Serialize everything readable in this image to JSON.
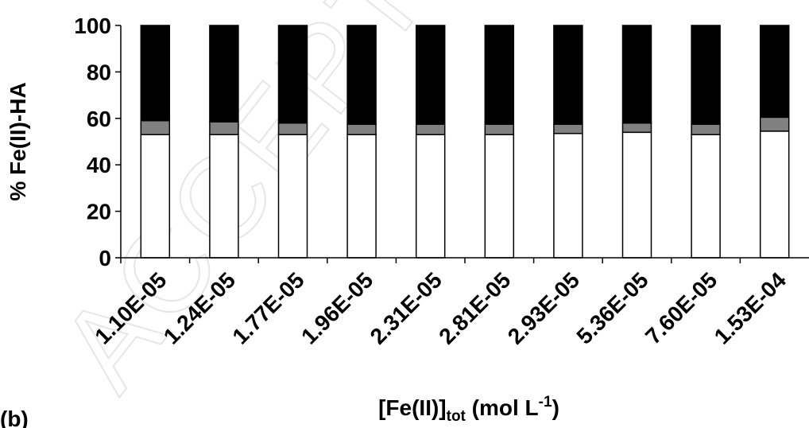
{
  "chart_data": {
    "type": "bar",
    "stacked": true,
    "categories": [
      "1.10E-05",
      "1.24E-05",
      "1.77E-05",
      "1.96E-05",
      "2.31E-05",
      "2.81E-05",
      "2.93E-05",
      "5.36E-05",
      "7.60E-05",
      "1.53E-04"
    ],
    "series": [
      {
        "color": "#ffffff",
        "values": [
          53,
          53,
          53,
          53,
          53,
          53,
          53.5,
          54,
          53,
          54.5
        ]
      },
      {
        "color": "#808080",
        "values": [
          6,
          5.5,
          5,
          4.5,
          4.5,
          4.5,
          4,
          4,
          4.5,
          6
        ]
      },
      {
        "color": "#000000",
        "values": [
          41,
          41.5,
          42,
          42.5,
          42.5,
          42.5,
          42.5,
          42,
          42.5,
          39.5
        ]
      }
    ],
    "ylabel": "% Fe(II)-HA",
    "xlabel": "[Fe(II)]",
    "xlabel_sub": "tot",
    "xlabel_unit_pre": " (mol L",
    "xlabel_sup": "-1",
    "xlabel_unit_post": ")",
    "ylim": [
      0,
      100
    ],
    "yticks": [
      "0",
      "20",
      "40",
      "60",
      "80",
      "100"
    ],
    "grid": false
  },
  "panel_label": "(b)",
  "watermark": "ACCEPTED"
}
